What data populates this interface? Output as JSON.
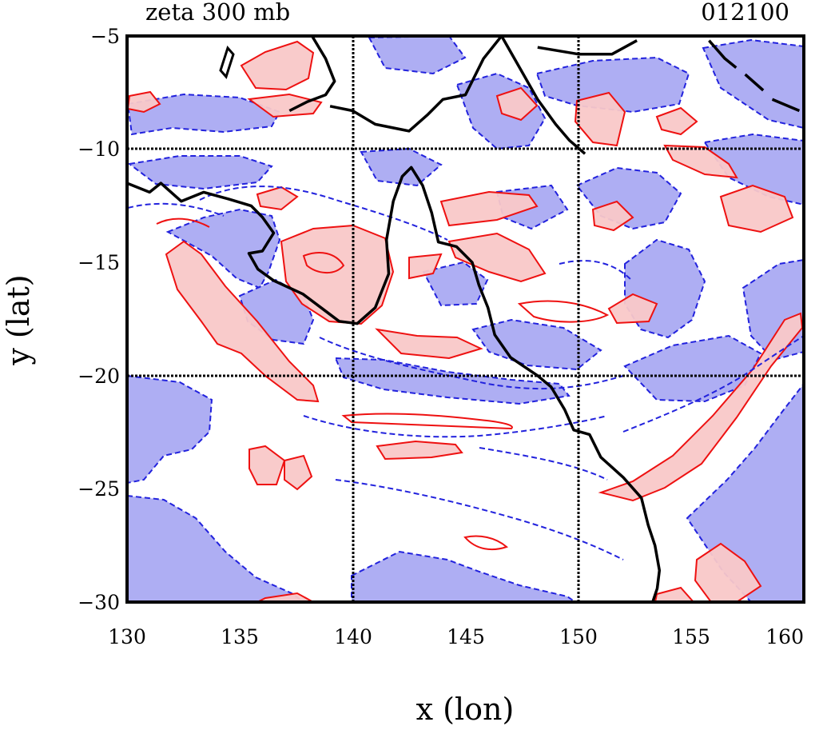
{
  "chart_data": {
    "type": "contour-map",
    "title": "zeta 300 mb",
    "time_label": "012100",
    "xlabel": "x (lon)",
    "ylabel": "y (lat)",
    "xlim": [
      130,
      160
    ],
    "ylim": [
      -30,
      -5
    ],
    "x_ticks": [
      "130",
      "135",
      "140",
      "145",
      "150",
      "155",
      "160"
    ],
    "y_ticks": [
      "−5",
      "−10",
      "−15",
      "−20",
      "−25",
      "−30"
    ],
    "grid_lon": [
      140,
      150
    ],
    "grid_lat": [
      -10,
      -20
    ],
    "colors": {
      "positive_fill": "#f9c8c8",
      "positive_line": "#ee1111",
      "negative_fill": "#aaaaf2",
      "negative_line": "#2222dd",
      "coast": "#000000",
      "grid": "#000000"
    },
    "coastline": [
      [
        [
          138.2,
          -5.0
        ],
        [
          138.8,
          -6.0
        ],
        [
          139.2,
          -7.0
        ],
        [
          138.8,
          -7.6
        ],
        [
          138.0,
          -7.9
        ],
        [
          137.2,
          -8.3
        ]
      ],
      [
        [
          139.0,
          -8.1
        ],
        [
          140.0,
          -8.3
        ],
        [
          141.0,
          -8.9
        ],
        [
          142.5,
          -9.2
        ],
        [
          143.3,
          -8.5
        ],
        [
          144.0,
          -7.8
        ],
        [
          145.0,
          -7.6
        ],
        [
          145.8,
          -6.0
        ],
        [
          146.6,
          -5.0
        ]
      ],
      [
        [
          146.6,
          -5.0
        ],
        [
          147.4,
          -6.4
        ],
        [
          148.2,
          -7.8
        ],
        [
          149.0,
          -8.9
        ],
        [
          149.6,
          -9.6
        ],
        [
          150.3,
          -10.2
        ]
      ],
      [
        [
          148.2,
          -5.5
        ],
        [
          150.0,
          -5.8
        ],
        [
          151.5,
          -5.8
        ],
        [
          152.6,
          -5.2
        ]
      ],
      [
        [
          155.8,
          -5.2
        ],
        [
          156.5,
          -6.0
        ],
        [
          157.0,
          -6.4
        ]
      ],
      [
        [
          157.4,
          -6.7
        ],
        [
          158.2,
          -7.4
        ]
      ],
      [
        [
          158.6,
          -7.8
        ],
        [
          159.8,
          -8.3
        ]
      ],
      [
        [
          130.0,
          -11.5
        ],
        [
          131.0,
          -11.9
        ],
        [
          131.5,
          -11.5
        ],
        [
          132.4,
          -12.3
        ],
        [
          133.4,
          -11.9
        ],
        [
          134.5,
          -12.2
        ],
        [
          135.5,
          -12.5
        ],
        [
          136.0,
          -13.0
        ],
        [
          136.5,
          -13.7
        ],
        [
          136.0,
          -14.5
        ],
        [
          135.4,
          -14.6
        ],
        [
          135.8,
          -15.3
        ],
        [
          136.5,
          -15.8
        ],
        [
          137.8,
          -16.4
        ],
        [
          138.6,
          -17.0
        ],
        [
          139.4,
          -17.6
        ],
        [
          140.2,
          -17.7
        ],
        [
          141.0,
          -17.0
        ],
        [
          141.6,
          -15.5
        ],
        [
          141.5,
          -14.0
        ],
        [
          141.8,
          -12.3
        ],
        [
          142.2,
          -11.2
        ],
        [
          142.6,
          -10.8
        ],
        [
          143.1,
          -11.6
        ],
        [
          143.5,
          -12.8
        ],
        [
          143.8,
          -14.1
        ],
        [
          144.6,
          -14.3
        ],
        [
          145.3,
          -15.0
        ],
        [
          145.6,
          -16.0
        ],
        [
          146.0,
          -17.0
        ],
        [
          146.3,
          -18.2
        ],
        [
          147.0,
          -19.2
        ],
        [
          148.2,
          -20.0
        ],
        [
          148.8,
          -20.5
        ],
        [
          149.4,
          -21.5
        ],
        [
          149.8,
          -22.4
        ],
        [
          150.5,
          -22.6
        ],
        [
          151.0,
          -23.6
        ],
        [
          152.0,
          -24.5
        ],
        [
          152.8,
          -25.4
        ],
        [
          153.1,
          -26.6
        ],
        [
          153.4,
          -27.5
        ],
        [
          153.6,
          -28.6
        ],
        [
          153.5,
          -29.4
        ],
        [
          153.3,
          -30.0
        ]
      ]
    ]
  }
}
